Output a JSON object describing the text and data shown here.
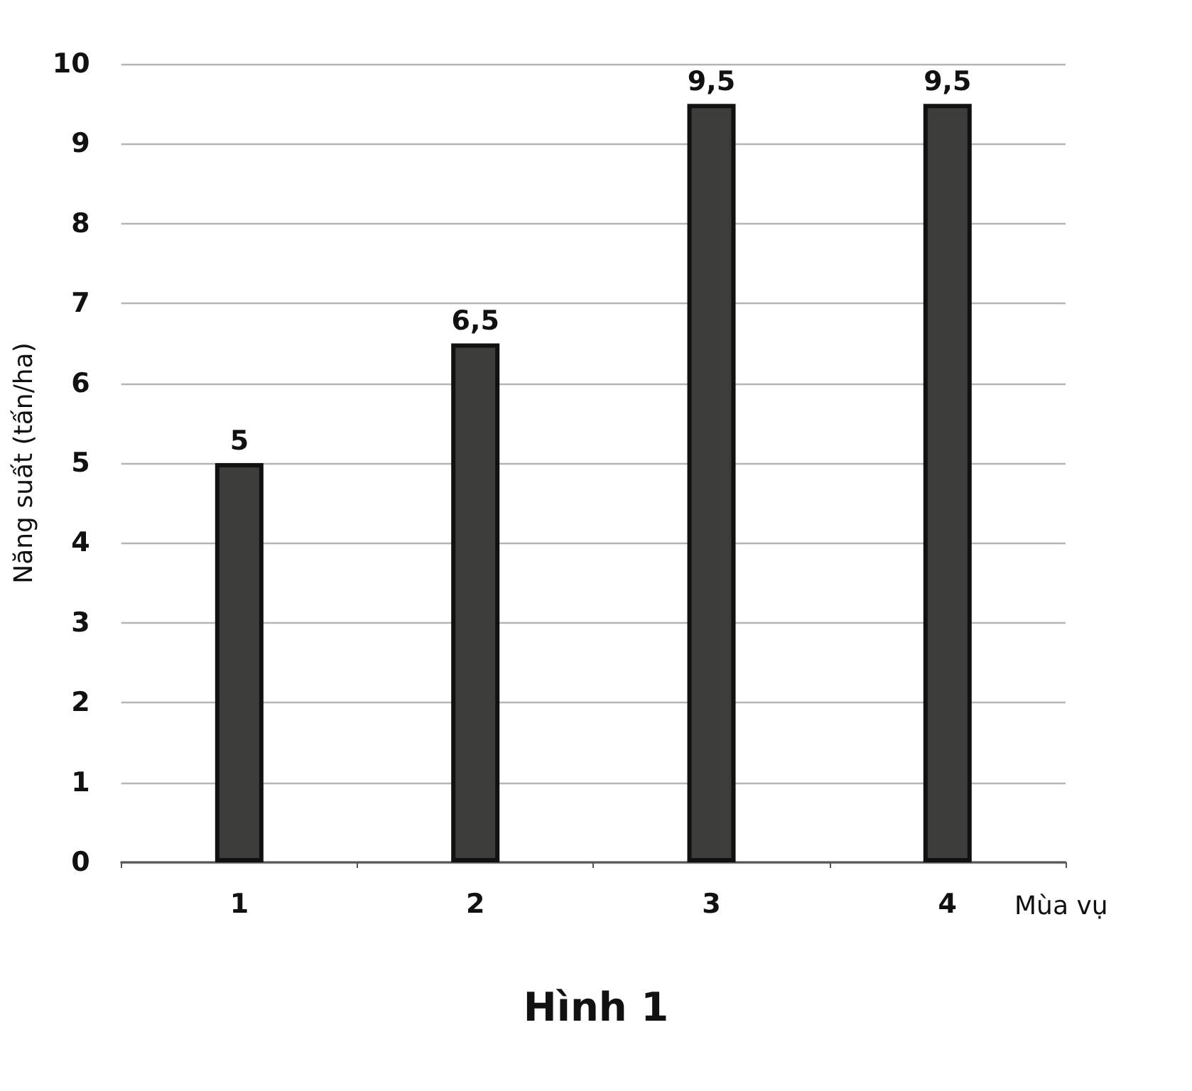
{
  "chart_data": {
    "type": "bar",
    "ylabel": "Năng suất (tấn/ha)",
    "xlabel": "Mùa vụ",
    "annotations": [
      "Hình 1"
    ],
    "categories": [
      "1",
      "2",
      "3",
      "4"
    ],
    "values": [
      5,
      6.5,
      9.5,
      9.5
    ],
    "value_labels": [
      "5",
      "6,5",
      "9,5",
      "9,5"
    ],
    "color": "#3d3d3b",
    "ylim": [
      0,
      10
    ],
    "yticks": [
      0,
      1,
      2,
      3,
      4,
      5,
      6,
      7,
      8,
      9,
      10
    ],
    "grid": "y"
  }
}
